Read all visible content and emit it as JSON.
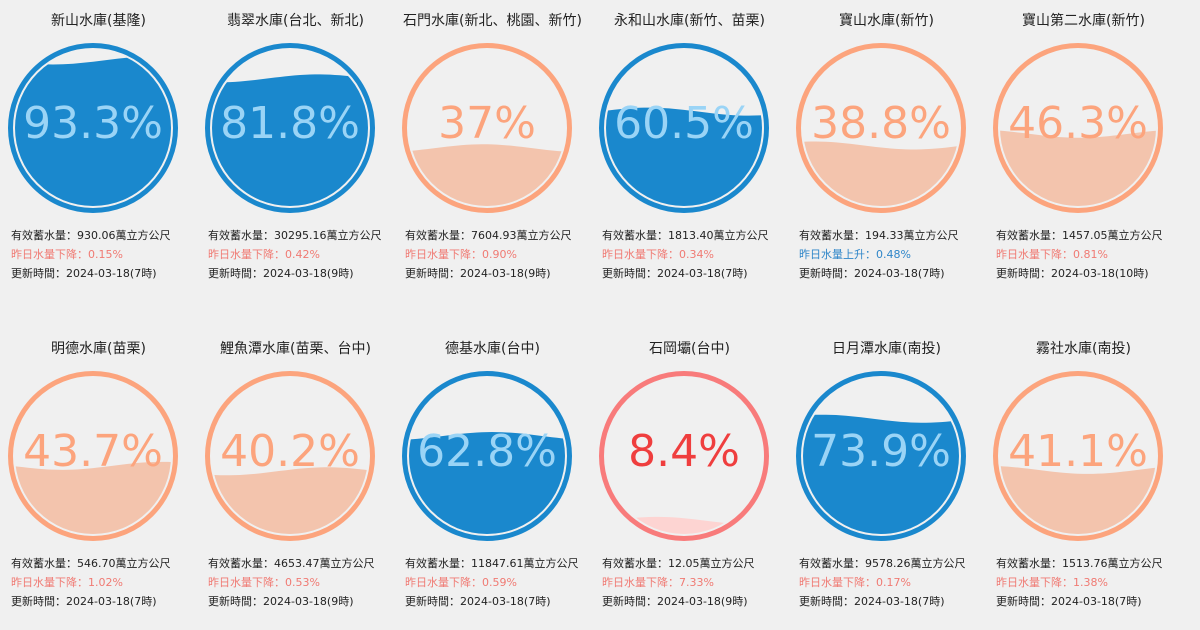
{
  "labels": {
    "storage_prefix": "有效蓄水量：",
    "storage_unit": "萬立方公尺",
    "time_prefix": "更新時間：",
    "change_down": "昨日水量下降：",
    "change_up": "昨日水量上升："
  },
  "colors": {
    "high_ring": "#1a88cd",
    "high_fill": "#1a88cd",
    "high_text": "#9ad4f6",
    "mid_ring": "#fca47d",
    "mid_fill": "#f3c4ad",
    "mid_text": "#fca47d",
    "low_ring": "#f87b7b",
    "low_fill": "#fdd4d2",
    "low_text": "#ef3e3e",
    "down": "#f07a73",
    "up": "#2f86c9"
  },
  "reservoirs": [
    {
      "name": "新山水庫(基隆)",
      "percent": 93.3,
      "percent_text": "93.3%",
      "level": "high",
      "storage": "930.06",
      "change_dir": "down",
      "change": "0.15%",
      "time": "2024-03-18(7時)"
    },
    {
      "name": "翡翠水庫(台北、新北)",
      "percent": 81.8,
      "percent_text": "81.8%",
      "level": "high",
      "storage": "30295.16",
      "change_dir": "down",
      "change": "0.42%",
      "time": "2024-03-18(9時)"
    },
    {
      "name": "石門水庫(新北、桃園、新竹)",
      "percent": 37,
      "percent_text": "37%",
      "level": "mid",
      "storage": "7604.93",
      "change_dir": "down",
      "change": "0.90%",
      "time": "2024-03-18(9時)"
    },
    {
      "name": "永和山水庫(新竹、苗栗)",
      "percent": 60.5,
      "percent_text": "60.5%",
      "level": "high",
      "storage": "1813.40",
      "change_dir": "down",
      "change": "0.34%",
      "time": "2024-03-18(7時)"
    },
    {
      "name": "寶山水庫(新竹)",
      "percent": 38.8,
      "percent_text": "38.8%",
      "level": "mid",
      "storage": "194.33",
      "change_dir": "up",
      "change": "0.48%",
      "time": "2024-03-18(7時)"
    },
    {
      "name": "寶山第二水庫(新竹)",
      "percent": 46.3,
      "percent_text": "46.3%",
      "level": "mid",
      "storage": "1457.05",
      "change_dir": "down",
      "change": "0.81%",
      "time": "2024-03-18(10時)"
    },
    {
      "name": "明德水庫(苗栗)",
      "percent": 43.7,
      "percent_text": "43.7%",
      "level": "mid",
      "storage": "546.70",
      "change_dir": "down",
      "change": "1.02%",
      "time": "2024-03-18(7時)"
    },
    {
      "name": "鯉魚潭水庫(苗栗、台中)",
      "percent": 40.2,
      "percent_text": "40.2%",
      "level": "mid",
      "storage": "4653.47",
      "change_dir": "down",
      "change": "0.53%",
      "time": "2024-03-18(9時)"
    },
    {
      "name": "德基水庫(台中)",
      "percent": 62.8,
      "percent_text": "62.8%",
      "level": "high",
      "storage": "11847.61",
      "change_dir": "down",
      "change": "0.59%",
      "time": "2024-03-18(7時)"
    },
    {
      "name": "石岡壩(台中)",
      "percent": 8.4,
      "percent_text": "8.4%",
      "level": "low",
      "storage": "12.05",
      "change_dir": "down",
      "change": "7.33%",
      "time": "2024-03-18(9時)"
    },
    {
      "name": "日月潭水庫(南投)",
      "percent": 73.9,
      "percent_text": "73.9%",
      "level": "high",
      "storage": "9578.26",
      "change_dir": "down",
      "change": "0.17%",
      "time": "2024-03-18(7時)"
    },
    {
      "name": "霧社水庫(南投)",
      "percent": 41.1,
      "percent_text": "41.1%",
      "level": "mid",
      "storage": "1513.76",
      "change_dir": "down",
      "change": "1.38%",
      "time": "2024-03-18(7時)"
    }
  ]
}
